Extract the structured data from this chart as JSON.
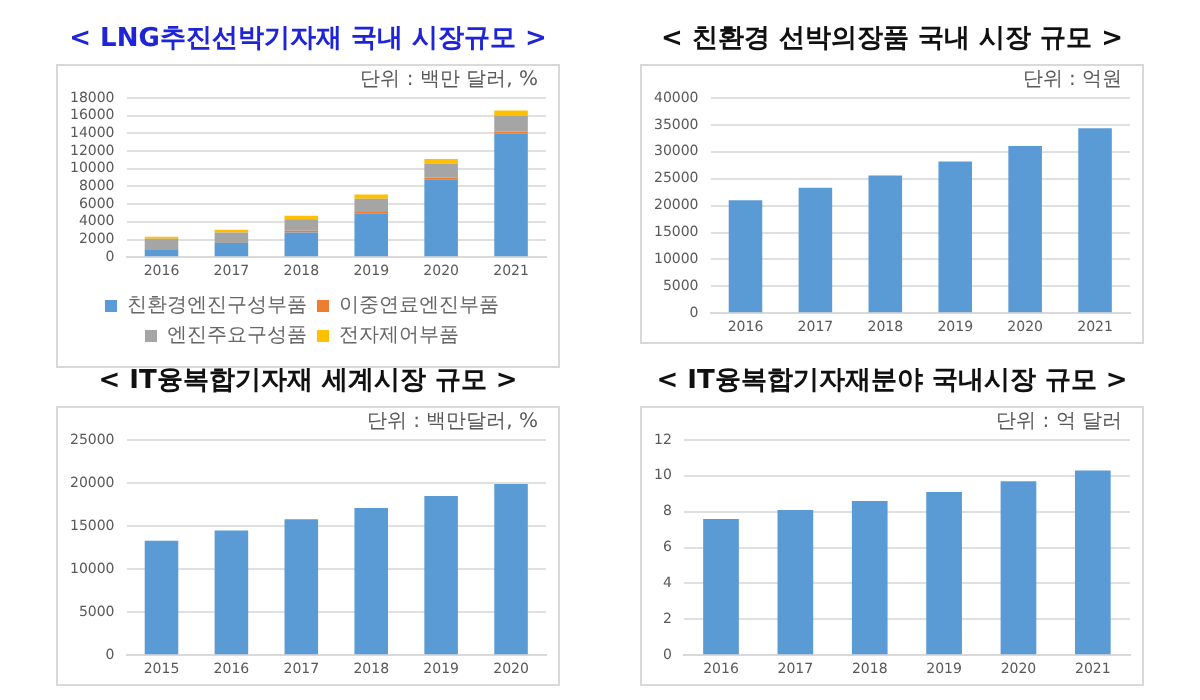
{
  "chart_data": [
    {
      "type": "bar",
      "title": "< LNG추진선박기자재 국내 시장규모 >",
      "categories": [
        "2016",
        "2017",
        "2018",
        "2019",
        "2020",
        "2021"
      ],
      "stacked": true,
      "series": [
        {
          "name": "친환경엔진구성부품",
          "color": "#5b9bd5",
          "values": [
            900,
            1600,
            2800,
            4900,
            8800,
            14000
          ]
        },
        {
          "name": "이중연료엔진부품",
          "color": "#ed7d31",
          "values": [
            null,
            null,
            200,
            200,
            200,
            200
          ]
        },
        {
          "name": "엔진주요구성품",
          "color": "#a5a5a5",
          "values": [
            1200,
            1200,
            1300,
            1500,
            1600,
            1800
          ]
        },
        {
          "name": "전자제어부품",
          "color": "#ffc000",
          "values": [
            200,
            300,
            400,
            500,
            500,
            600
          ]
        }
      ],
      "ylim": [
        0,
        18000
      ],
      "yticks": [
        0,
        2000,
        4000,
        6000,
        8000,
        10000,
        12000,
        14000,
        16000,
        18000
      ],
      "grid": "y",
      "legend": "bottom",
      "annotations": [
        "단위 : 백만 달러, %"
      ]
    },
    {
      "type": "bar",
      "title": "< 친환경 선박의장품 국내 시장 규모 >",
      "categories": [
        "2016",
        "2017",
        "2018",
        "2019",
        "2020",
        "2021"
      ],
      "series": [
        {
          "color": "#5b9bd5",
          "values": [
            21000,
            23300,
            25600,
            28200,
            31100,
            34400
          ]
        }
      ],
      "ylim": [
        0,
        40000
      ],
      "yticks": [
        0,
        5000,
        10000,
        15000,
        20000,
        25000,
        30000,
        35000,
        40000
      ],
      "grid": "y",
      "annotations": [
        "단위 : 억원"
      ]
    },
    {
      "type": "bar",
      "title": "< IT융복합기자재 세계시장 규모 >",
      "categories": [
        "2015",
        "2016",
        "2017",
        "2018",
        "2019",
        "2020"
      ],
      "series": [
        {
          "color": "#5b9bd5",
          "values": [
            13300,
            14500,
            15800,
            17100,
            18500,
            19900
          ]
        }
      ],
      "ylim": [
        0,
        25000
      ],
      "yticks": [
        0,
        5000,
        10000,
        15000,
        20000,
        25000
      ],
      "grid": "y",
      "annotations": [
        "단위 : 백만달러, %"
      ]
    },
    {
      "type": "bar",
      "title": "< IT융복합기자재분야 국내시장 규모 >",
      "categories": [
        "2016",
        "2017",
        "2018",
        "2019",
        "2020",
        "2021"
      ],
      "series": [
        {
          "color": "#5b9bd5",
          "values": [
            7.6,
            8.1,
            8.6,
            9.1,
            9.7,
            10.3
          ]
        }
      ],
      "ylim": [
        0,
        12
      ],
      "yticks": [
        0,
        2,
        4,
        6,
        8,
        10,
        12
      ],
      "grid": "y",
      "annotations": [
        "단위 : 억 달러"
      ]
    }
  ]
}
